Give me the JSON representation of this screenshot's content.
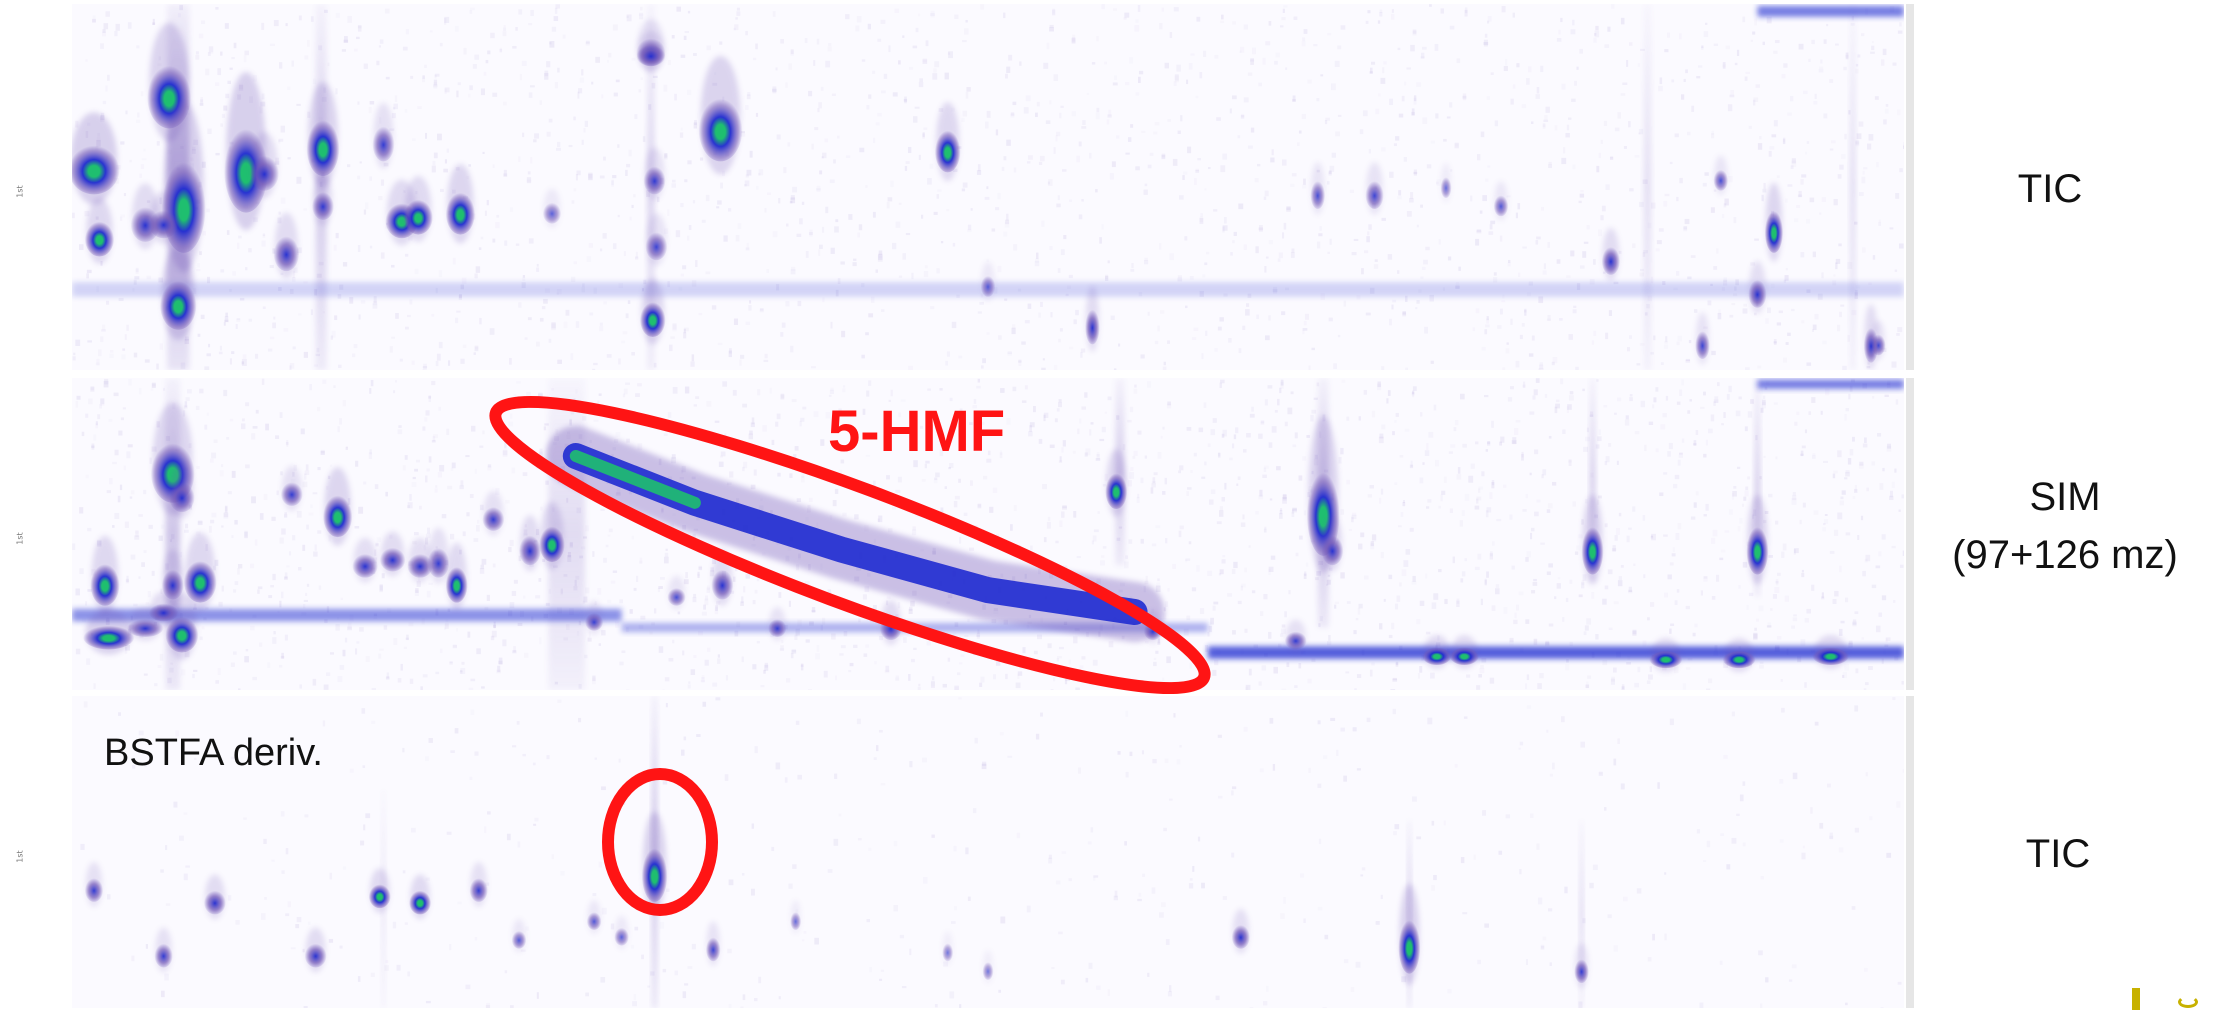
{
  "chart_data": [
    {
      "type": "heatmap",
      "title": "",
      "xlabel": "",
      "ylabel": "",
      "label": "TIC",
      "spots": [
        [
          0.012,
          0.45,
          0.014,
          0.07,
          1.0
        ],
        [
          0.015,
          0.64,
          0.008,
          0.05,
          0.8
        ],
        [
          0.053,
          0.25,
          0.012,
          0.09,
          0.9
        ],
        [
          0.061,
          0.55,
          0.012,
          0.13,
          1.0
        ],
        [
          0.058,
          0.82,
          0.01,
          0.07,
          0.95
        ],
        [
          0.04,
          0.6,
          0.008,
          0.05,
          0.7
        ],
        [
          0.05,
          0.6,
          0.008,
          0.04,
          0.7
        ],
        [
          0.095,
          0.45,
          0.012,
          0.12,
          1.0
        ],
        [
          0.105,
          0.46,
          0.008,
          0.05,
          0.7
        ],
        [
          0.117,
          0.68,
          0.007,
          0.05,
          0.7
        ],
        [
          0.137,
          0.39,
          0.009,
          0.08,
          0.9
        ],
        [
          0.137,
          0.55,
          0.006,
          0.04,
          0.6
        ],
        [
          0.17,
          0.38,
          0.006,
          0.05,
          0.6
        ],
        [
          0.18,
          0.59,
          0.009,
          0.05,
          0.75
        ],
        [
          0.189,
          0.58,
          0.008,
          0.05,
          0.75
        ],
        [
          0.212,
          0.57,
          0.008,
          0.06,
          0.85
        ],
        [
          0.262,
          0.57,
          0.005,
          0.03,
          0.4
        ],
        [
          0.318,
          0.48,
          0.006,
          0.04,
          0.6
        ],
        [
          0.319,
          0.66,
          0.006,
          0.04,
          0.55
        ],
        [
          0.317,
          0.86,
          0.007,
          0.05,
          0.8
        ],
        [
          0.316,
          0.13,
          0.008,
          0.04,
          0.6
        ],
        [
          0.316,
          0.14,
          0.008,
          0.03,
          0.6
        ],
        [
          0.354,
          0.34,
          0.012,
          0.09,
          0.9
        ],
        [
          0.478,
          0.4,
          0.007,
          0.06,
          0.8
        ],
        [
          0.5,
          0.77,
          0.004,
          0.03,
          0.4
        ],
        [
          0.557,
          0.88,
          0.004,
          0.05,
          0.7
        ],
        [
          0.68,
          0.52,
          0.004,
          0.04,
          0.5
        ],
        [
          0.711,
          0.52,
          0.005,
          0.04,
          0.55
        ],
        [
          0.78,
          0.55,
          0.004,
          0.03,
          0.45
        ],
        [
          0.84,
          0.7,
          0.005,
          0.04,
          0.7
        ],
        [
          0.929,
          0.62,
          0.005,
          0.06,
          0.85
        ],
        [
          0.92,
          0.79,
          0.005,
          0.04,
          0.65
        ],
        [
          0.986,
          0.93,
          0.004,
          0.03,
          0.55
        ],
        [
          1.03,
          0.68,
          0.004,
          0.05,
          0.7
        ],
        [
          0.982,
          0.93,
          0.004,
          0.05,
          0.7
        ],
        [
          0.89,
          0.93,
          0.004,
          0.04,
          0.55
        ],
        [
          0.9,
          0.48,
          0.004,
          0.03,
          0.5
        ],
        [
          0.75,
          0.5,
          0.003,
          0.03,
          0.35
        ]
      ],
      "streaks": [
        [
          0.058,
          0.0,
          1.0,
          0.012,
          0.45
        ],
        [
          0.136,
          0.0,
          1.0,
          0.006,
          0.3
        ],
        [
          0.316,
          0.0,
          1.0,
          0.004,
          0.25
        ],
        [
          0.972,
          0.0,
          1.0,
          0.003,
          0.2
        ],
        [
          0.86,
          0.0,
          1.0,
          0.004,
          0.18
        ]
      ],
      "bands": [
        [
          0.0,
          1.0,
          0.78,
          0.04,
          0.18
        ],
        [
          0.92,
          1.0,
          0.02,
          0.03,
          0.6
        ]
      ]
    },
    {
      "type": "heatmap",
      "title": "",
      "xlabel": "",
      "ylabel": "",
      "label": "SIM\n(97+126 mz)",
      "spots": [
        [
          0.018,
          0.66,
          0.008,
          0.07,
          0.8
        ],
        [
          0.02,
          0.83,
          0.014,
          0.04,
          0.95
        ],
        [
          0.04,
          0.8,
          0.01,
          0.03,
          0.7
        ],
        [
          0.05,
          0.75,
          0.008,
          0.03,
          0.7
        ],
        [
          0.055,
          0.66,
          0.006,
          0.05,
          0.7
        ],
        [
          0.06,
          0.82,
          0.009,
          0.06,
          0.8
        ],
        [
          0.07,
          0.65,
          0.009,
          0.07,
          0.8
        ],
        [
          0.055,
          0.3,
          0.012,
          0.1,
          0.85
        ],
        [
          0.06,
          0.38,
          0.007,
          0.05,
          0.7
        ],
        [
          0.12,
          0.37,
          0.006,
          0.04,
          0.6
        ],
        [
          0.145,
          0.44,
          0.008,
          0.07,
          0.85
        ],
        [
          0.16,
          0.6,
          0.007,
          0.04,
          0.65
        ],
        [
          0.175,
          0.58,
          0.007,
          0.04,
          0.7
        ],
        [
          0.19,
          0.6,
          0.007,
          0.04,
          0.65
        ],
        [
          0.2,
          0.59,
          0.006,
          0.05,
          0.6
        ],
        [
          0.21,
          0.66,
          0.006,
          0.06,
          0.75
        ],
        [
          0.23,
          0.45,
          0.006,
          0.04,
          0.6
        ],
        [
          0.25,
          0.55,
          0.006,
          0.05,
          0.7
        ],
        [
          0.262,
          0.53,
          0.007,
          0.06,
          0.75
        ],
        [
          0.285,
          0.78,
          0.005,
          0.03,
          0.55
        ],
        [
          0.33,
          0.7,
          0.005,
          0.03,
          0.5
        ],
        [
          0.355,
          0.66,
          0.006,
          0.05,
          0.7
        ],
        [
          0.385,
          0.8,
          0.005,
          0.03,
          0.55
        ],
        [
          0.447,
          0.8,
          0.006,
          0.04,
          0.7
        ],
        [
          0.57,
          0.36,
          0.006,
          0.06,
          0.8
        ],
        [
          0.59,
          0.81,
          0.005,
          0.03,
          0.55
        ],
        [
          0.683,
          0.43,
          0.009,
          0.14,
          0.9
        ],
        [
          0.688,
          0.55,
          0.006,
          0.05,
          0.7
        ],
        [
          0.83,
          0.55,
          0.006,
          0.08,
          0.9
        ],
        [
          0.92,
          0.55,
          0.006,
          0.08,
          0.9
        ],
        [
          0.745,
          0.89,
          0.008,
          0.03,
          0.75
        ],
        [
          0.76,
          0.89,
          0.008,
          0.03,
          0.75
        ],
        [
          0.87,
          0.9,
          0.009,
          0.03,
          0.8
        ],
        [
          0.91,
          0.9,
          0.009,
          0.03,
          0.8
        ],
        [
          0.96,
          0.89,
          0.01,
          0.03,
          0.8
        ],
        [
          0.668,
          0.84,
          0.006,
          0.03,
          0.6
        ]
      ],
      "streaks": [
        [
          0.055,
          0.0,
          1.0,
          0.008,
          0.35
        ],
        [
          0.27,
          0.0,
          1.0,
          0.02,
          0.2
        ],
        [
          0.572,
          0.0,
          0.6,
          0.005,
          0.3
        ],
        [
          0.683,
          0.0,
          0.8,
          0.006,
          0.35
        ],
        [
          0.83,
          0.0,
          0.65,
          0.003,
          0.3
        ],
        [
          0.92,
          0.0,
          0.7,
          0.003,
          0.3
        ]
      ],
      "bands": [
        [
          0.0,
          0.3,
          0.76,
          0.04,
          0.5
        ],
        [
          0.3,
          0.62,
          0.8,
          0.03,
          0.35
        ],
        [
          0.62,
          1.0,
          0.88,
          0.04,
          0.75
        ],
        [
          0.92,
          1.0,
          0.02,
          0.03,
          0.6
        ]
      ],
      "ridge": [
        [
          0.275,
          0.25
        ],
        [
          0.34,
          0.4
        ],
        [
          0.42,
          0.55
        ],
        [
          0.5,
          0.68
        ],
        [
          0.58,
          0.75
        ]
      ]
    },
    {
      "type": "heatmap",
      "title": "",
      "xlabel": "",
      "ylabel": "",
      "label": "TIC",
      "spots": [
        [
          0.012,
          0.62,
          0.005,
          0.04,
          0.6
        ],
        [
          0.05,
          0.83,
          0.005,
          0.04,
          0.6
        ],
        [
          0.078,
          0.66,
          0.006,
          0.04,
          0.7
        ],
        [
          0.133,
          0.83,
          0.006,
          0.04,
          0.7
        ],
        [
          0.168,
          0.64,
          0.006,
          0.04,
          0.75
        ],
        [
          0.19,
          0.66,
          0.006,
          0.04,
          0.75
        ],
        [
          0.222,
          0.62,
          0.005,
          0.04,
          0.6
        ],
        [
          0.244,
          0.78,
          0.004,
          0.03,
          0.45
        ],
        [
          0.285,
          0.72,
          0.004,
          0.03,
          0.45
        ],
        [
          0.3,
          0.77,
          0.004,
          0.03,
          0.4
        ],
        [
          0.318,
          0.57,
          0.007,
          0.09,
          0.95
        ],
        [
          0.35,
          0.81,
          0.004,
          0.04,
          0.55
        ],
        [
          0.395,
          0.72,
          0.003,
          0.03,
          0.35
        ],
        [
          0.478,
          0.82,
          0.003,
          0.03,
          0.3
        ],
        [
          0.638,
          0.77,
          0.005,
          0.04,
          0.65
        ],
        [
          0.73,
          0.8,
          0.006,
          0.09,
          0.95
        ],
        [
          0.824,
          0.88,
          0.004,
          0.04,
          0.6
        ],
        [
          0.5,
          0.88,
          0.003,
          0.03,
          0.3
        ]
      ],
      "streaks": [
        [
          0.318,
          0.0,
          1.0,
          0.003,
          0.4
        ],
        [
          0.73,
          0.4,
          1.0,
          0.002,
          0.35
        ],
        [
          0.824,
          0.4,
          1.0,
          0.002,
          0.25
        ],
        [
          0.17,
          0.3,
          1.0,
          0.002,
          0.15
        ]
      ],
      "bands": []
    }
  ],
  "highlights": {
    "hmf_label": "5-HMF",
    "bstfa_note": "BSTFA deriv."
  },
  "side_labels": {
    "panel1": "TIC",
    "panel2_line1": "SIM",
    "panel2_line2": "(97+126 mz)",
    "panel3": "TIC"
  },
  "colors": {
    "low": "#6f55b7",
    "mid": "#1f2bd0",
    "high": "#1fbf6f",
    "peak": "#d8ff2a",
    "highlight": "#ff1414"
  }
}
